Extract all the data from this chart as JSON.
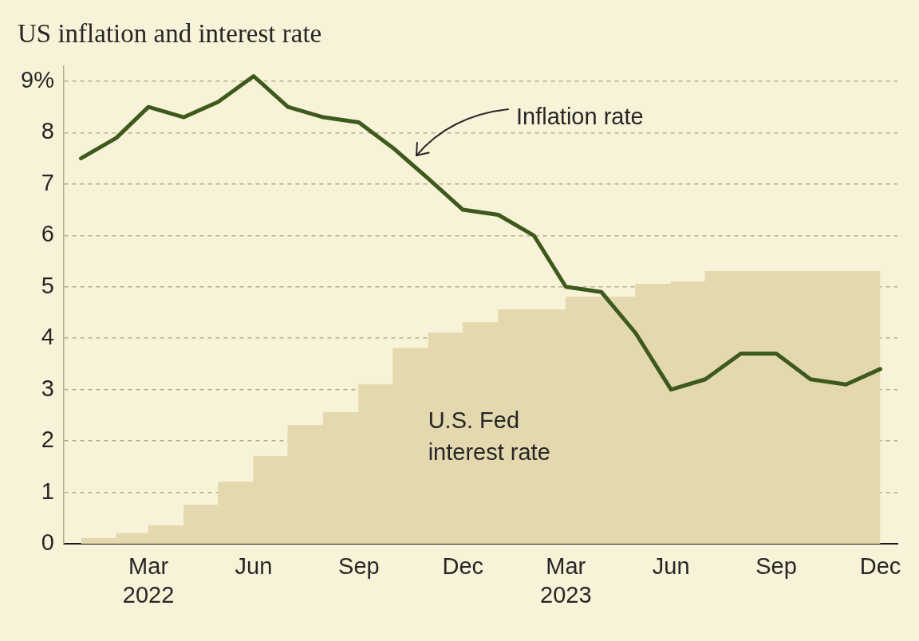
{
  "chart_data": {
    "type": "line",
    "title": "US inflation and interest rate",
    "x": [
      "2022-01",
      "2022-02",
      "2022-03",
      "2022-04",
      "2022-05",
      "2022-06",
      "2022-07",
      "2022-08",
      "2022-09",
      "2022-10",
      "2022-11",
      "2022-12",
      "2023-01",
      "2023-02",
      "2023-03",
      "2023-04",
      "2023-05",
      "2023-06",
      "2023-07",
      "2023-08",
      "2023-09",
      "2023-10",
      "2023-11",
      "2023-12"
    ],
    "series": [
      {
        "color": "#3d5a1c",
        "values": [
          7.5,
          7.9,
          8.5,
          8.3,
          8.6,
          9.1,
          8.5,
          8.3,
          8.2,
          7.7,
          7.1,
          6.5,
          6.4,
          6.0,
          5.0,
          4.9,
          4.1,
          3.0,
          3.2,
          3.7,
          3.7,
          3.2,
          3.1,
          3.4
        ]
      },
      {
        "name": "U.S. Fed interest rate",
        "type": "area",
        "color": "#e4d8ae",
        "x": [
          "2022-01",
          "2022-02",
          "2022-02",
          "2022-03",
          "2022-03",
          "2022-04",
          "2022-04",
          "2022-05",
          "2022-05",
          "2022-06",
          "2022-06",
          "2022-07",
          "2022-07",
          "2022-08",
          "2022-08",
          "2022-09",
          "2022-09",
          "2022-10",
          "2022-10",
          "2022-11",
          "2022-11",
          "2022-12",
          "2022-12",
          "2023-01",
          "2023-01",
          "2023-03",
          "2023-03",
          "2023-05",
          "2023-05",
          "2023-06",
          "2023-06",
          "2023-07",
          "2023-07",
          "2023-12"
        ],
        "values": [
          0.1,
          0.1,
          0.2,
          0.2,
          0.35,
          0.35,
          0.75,
          0.75,
          1.2,
          1.2,
          1.7,
          1.7,
          2.3,
          2.3,
          2.55,
          2.55,
          3.1,
          3.1,
          3.8,
          3.8,
          4.1,
          4.1,
          4.3,
          4.3,
          4.55,
          4.55,
          4.8,
          4.8,
          5.05,
          5.05,
          5.1,
          5.1,
          5.3,
          5.3
        ]
      }
    ],
    "annotations": [
      "Inflation rate"
    ],
    "xlim": [
      "2021-12-17",
      "2023-12-16"
    ],
    "xticks": [
      {
        "value": "2022-03",
        "label": "Mar\n2022"
      },
      {
        "value": "2022-06",
        "label": "Jun"
      },
      {
        "value": "2022-09",
        "label": "Sep"
      },
      {
        "value": "2022-12",
        "label": "Dec"
      },
      {
        "value": "2023-03",
        "label": "Mar\n2023"
      },
      {
        "value": "2023-06",
        "label": "Jun"
      },
      {
        "value": "2023-09",
        "label": "Sep"
      },
      {
        "value": "2023-12",
        "label": "Dec"
      }
    ],
    "ylim": [
      0,
      9.3
    ],
    "yticks": [
      0,
      1,
      2,
      3,
      4,
      5,
      6,
      7,
      8,
      {
        "value": 9,
        "label": "9%"
      }
    ],
    "grid": "y"
  }
}
